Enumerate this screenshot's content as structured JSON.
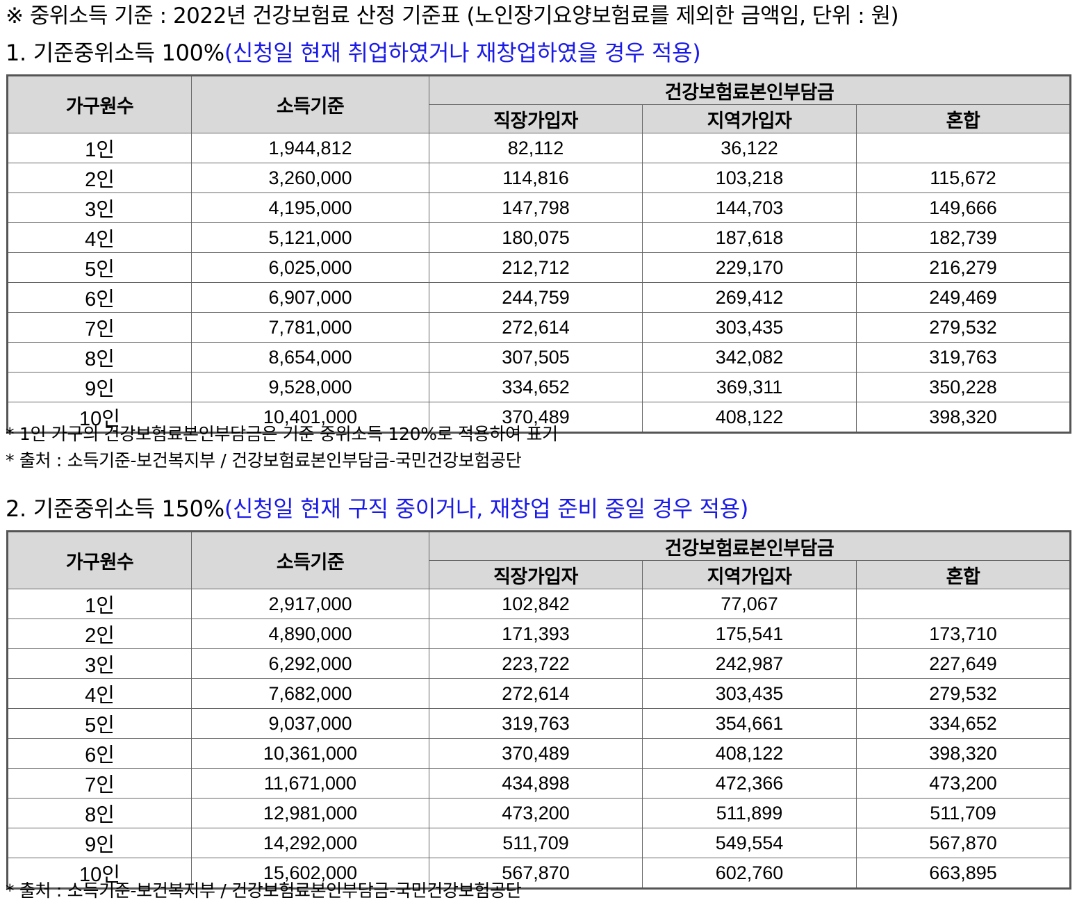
{
  "notice": "※ 중위소득 기준 : 2022년 건강보험료 산정 기준표 (노인장기요양보험료를 제외한 금액임, 단위 : 원)",
  "section1": {
    "heading": "1. 기준중위소득  100%",
    "heading_note": "(신청일 현재 취업하였거나 재창업하였을 경우 적용)",
    "headers": {
      "household": "가구원수",
      "income": "소득기준",
      "premium_group": "건강보험료본인부담금",
      "employee": "직장가입자",
      "regional": "지역가입자",
      "mixed": "혼합"
    },
    "rows": [
      {
        "household": "1인",
        "income": "1,944,812",
        "employee": "82,112",
        "regional": "36,122",
        "mixed": ""
      },
      {
        "household": "2인",
        "income": "3,260,000",
        "employee": "114,816",
        "regional": "103,218",
        "mixed": "115,672"
      },
      {
        "household": "3인",
        "income": "4,195,000",
        "employee": "147,798",
        "regional": "144,703",
        "mixed": "149,666"
      },
      {
        "household": "4인",
        "income": "5,121,000",
        "employee": "180,075",
        "regional": "187,618",
        "mixed": "182,739"
      },
      {
        "household": "5인",
        "income": "6,025,000",
        "employee": "212,712",
        "regional": "229,170",
        "mixed": "216,279"
      },
      {
        "household": "6인",
        "income": "6,907,000",
        "employee": "244,759",
        "regional": "269,412",
        "mixed": "249,469"
      },
      {
        "household": "7인",
        "income": "7,781,000",
        "employee": "272,614",
        "regional": "303,435",
        "mixed": "279,532"
      },
      {
        "household": "8인",
        "income": "8,654,000",
        "employee": "307,505",
        "regional": "342,082",
        "mixed": "319,763"
      },
      {
        "household": "9인",
        "income": "9,528,000",
        "employee": "334,652",
        "regional": "369,311",
        "mixed": "350,228"
      },
      {
        "household": "10인",
        "income": "10,401,000",
        "employee": "370,489",
        "regional": "408,122",
        "mixed": "398,320"
      }
    ],
    "footnotes": [
      "*  1인 가구의 건강보험료본인부담금은 기준 중위소득 120%로 적용하여 표기",
      "*  출처 : 소득기준-보건복지부 / 건강보험료본인부담금-국민건강보험공단"
    ]
  },
  "section2": {
    "heading": "2. 기준중위소득  150%",
    "heading_note": "(신청일 현재 구직 중이거나, 재창업 준비 중일 경우 적용)",
    "headers": {
      "household": "가구원수",
      "income": "소득기준",
      "premium_group": "건강보험료본인부담금",
      "employee": "직장가입자",
      "regional": "지역가입자",
      "mixed": "혼합"
    },
    "rows": [
      {
        "household": "1인",
        "income": "2,917,000",
        "employee": "102,842",
        "regional": "77,067",
        "mixed": ""
      },
      {
        "household": "2인",
        "income": "4,890,000",
        "employee": "171,393",
        "regional": "175,541",
        "mixed": "173,710"
      },
      {
        "household": "3인",
        "income": "6,292,000",
        "employee": "223,722",
        "regional": "242,987",
        "mixed": "227,649"
      },
      {
        "household": "4인",
        "income": "7,682,000",
        "employee": "272,614",
        "regional": "303,435",
        "mixed": "279,532"
      },
      {
        "household": "5인",
        "income": "9,037,000",
        "employee": "319,763",
        "regional": "354,661",
        "mixed": "334,652"
      },
      {
        "household": "6인",
        "income": "10,361,000",
        "employee": "370,489",
        "regional": "408,122",
        "mixed": "398,320"
      },
      {
        "household": "7인",
        "income": "11,671,000",
        "employee": "434,898",
        "regional": "472,366",
        "mixed": "473,200"
      },
      {
        "household": "8인",
        "income": "12,981,000",
        "employee": "473,200",
        "regional": "511,899",
        "mixed": "511,709"
      },
      {
        "household": "9인",
        "income": "14,292,000",
        "employee": "511,709",
        "regional": "549,554",
        "mixed": "567,870"
      },
      {
        "household": "10인",
        "income": "15,602,000",
        "employee": "567,870",
        "regional": "602,760",
        "mixed": "663,895"
      }
    ],
    "footnotes": [
      "*  출처 : 소득기준-보건복지부 / 건강보험료본인부담금-국민건강보험공단"
    ]
  }
}
